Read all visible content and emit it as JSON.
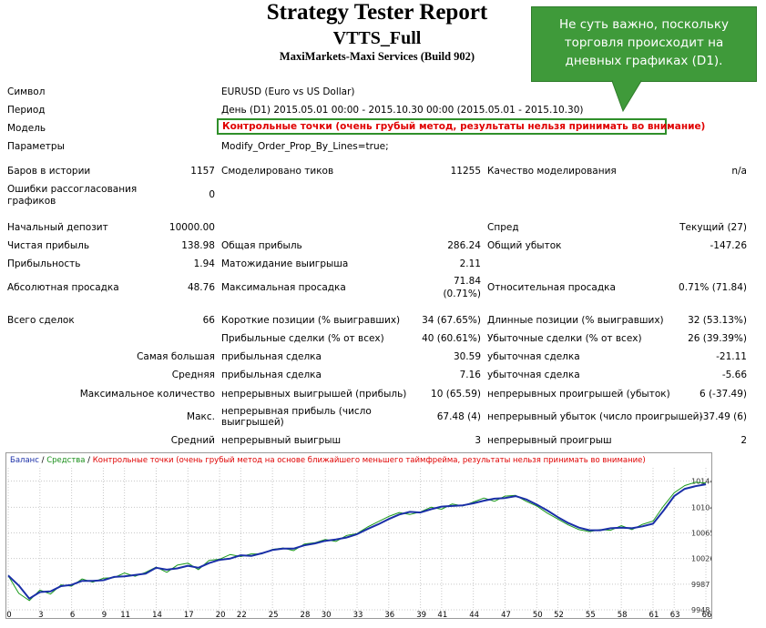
{
  "report": {
    "title": "Strategy Tester Report",
    "ea_name": "VTTS_Full",
    "server": "MaxiMarkets-Maxi Services (Build 902)"
  },
  "callout": {
    "line1": "Не суть важно, поскольку",
    "line2": "торговля происходит на",
    "line3": "дневных графиках (D1)."
  },
  "info": {
    "symbol_label": "Символ",
    "symbol_value": "EURUSD (Euro vs US Dollar)",
    "period_label": "Период",
    "period_value": "День (D1) 2015.05.01 00:00 - 2015.10.30 00:00 (2015.05.01 - 2015.10.30)",
    "model_label": "Модель",
    "model_value": "Контрольные точки (очень грубый метод, результаты нельзя принимать во внимание)",
    "params_label": "Параметры",
    "params_value": "Modify_Order_Prop_By_Lines=true;"
  },
  "stats": {
    "bars_label": "Баров в истории",
    "bars_value": "1157",
    "ticks_label": "Смоделировано тиков",
    "ticks_value": "11255",
    "quality_label": "Качество моделирования",
    "quality_value": "n/a",
    "errors_label1": "Ошибки рассогласования",
    "errors_label2": "графиков",
    "errors_value": "0",
    "deposit_label": "Начальный депозит",
    "deposit_value": "10000.00",
    "spread_label": "Спред",
    "spread_value": "Текущий (27)",
    "net_label": "Чистая прибыль",
    "net_value": "138.98",
    "gross_profit_label": "Общая прибыль",
    "gross_profit_value": "286.24",
    "gross_loss_label": "Общий убыток",
    "gross_loss_value": "-147.26",
    "pf_label": "Прибыльность",
    "pf_value": "1.94",
    "payoff_label": "Матожидание выигрыша",
    "payoff_value": "2.11",
    "abs_dd_label": "Абсолютная просадка",
    "abs_dd_value": "48.76",
    "max_dd_label": "Максимальная просадка",
    "max_dd_value1": "71.84",
    "max_dd_value2": "(0.71%)",
    "rel_dd_label": "Относительная просадка",
    "rel_dd_value": "0.71% (71.84)"
  },
  "trades": {
    "total_label": "Всего сделок",
    "total_value": "66",
    "short_label": "Короткие позиции (% выигравших)",
    "short_value": "34 (67.65%)",
    "long_label": "Длинные позиции (% выигравших)",
    "long_value": "32 (53.13%)",
    "profit_trades_label": "Прибыльные сделки (% от всех)",
    "profit_trades_value": "40 (60.61%)",
    "loss_trades_label": "Убыточные сделки (% от всех)",
    "loss_trades_value": "26 (39.39%)",
    "largest_label": "Самая большая",
    "largest_profit_label": "прибыльная сделка",
    "largest_profit_value": "30.59",
    "largest_loss_label": "убыточная сделка",
    "largest_loss_value": "-21.11",
    "average_label": "Средняя",
    "average_profit_label": "прибыльная сделка",
    "average_profit_value": "7.16",
    "average_loss_label": "убыточная сделка",
    "average_loss_value": "-5.66",
    "max_count_label": "Максимальное количество",
    "max_wins_label": "непрерывных выигрышей (прибыль)",
    "max_wins_value": "10 (65.59)",
    "max_losses_label": "непрерывных проигрышей (убыток)",
    "max_losses_value": "6 (-37.49)",
    "max_label": "Макс.",
    "max_profit_label1": "непрерывная прибыль (число",
    "max_profit_label2": "выигрышей)",
    "max_profit_value": "67.48 (4)",
    "max_loss_label": "непрерывный убыток (число проигрышей)",
    "max_loss_value": "-37.49 (6)",
    "avg_label": "Средний",
    "avg_wins_label": "непрерывный выигрыш",
    "avg_wins_value": "3",
    "avg_losses_label": "непрерывный проигрыш",
    "avg_losses_value": "2"
  },
  "chart_data": {
    "type": "line",
    "legend": {
      "balance": "Баланс",
      "sep1": " / ",
      "equity": "Средства",
      "sep2": " / ",
      "model": "Контрольные точки (очень грубый метод на основе ближайшего меньшего таймфрейма, результаты нельзя принимать во внимание)"
    },
    "x_ticks": [
      "0",
      "3",
      "6",
      "9",
      "11",
      "14",
      "17",
      "20",
      "22",
      "25",
      "28",
      "30",
      "33",
      "36",
      "39",
      "41",
      "44",
      "47",
      "50",
      "52",
      "55",
      "58",
      "61",
      "63",
      "66"
    ],
    "y_ticks": [
      "10144",
      "10104",
      "10065",
      "10026",
      "9987",
      "9948"
    ],
    "ylim": [
      9948,
      10164
    ],
    "colors": {
      "balance": "#1a2fa8",
      "equity": "#1a9a1a",
      "model": "#e00000"
    },
    "series": [
      {
        "name": "Баланс",
        "values": [
          10000,
          9985,
          9965,
          9975,
          9976,
          9984,
          9986,
          9992,
          9992,
          9993,
          9998,
          9999,
          10001,
          10003,
          10012,
          10009,
          10011,
          10015,
          10012,
          10019,
          10024,
          10026,
          10031,
          10030,
          10034,
          10039,
          10041,
          10041,
          10046,
          10049,
          10053,
          10055,
          10058,
          10063,
          10071,
          10078,
          10086,
          10093,
          10097,
          10096,
          10101,
          10105,
          10106,
          10107,
          10110,
          10114,
          10117,
          10118,
          10121,
          10116,
          10108,
          10099,
          10089,
          10080,
          10073,
          10069,
          10069,
          10072,
          10073,
          10072,
          10075,
          10079,
          10099,
          10121,
          10132,
          10136,
          10139
        ]
      },
      {
        "name": "Средства",
        "values": [
          10000,
          9973,
          9962,
          9978,
          9972,
          9986,
          9984,
          9995,
          9990,
          9996,
          9997,
          10004,
          9999,
          10005,
          10013,
          10005,
          10016,
          10019,
          10009,
          10023,
          10025,
          10032,
          10029,
          10033,
          10033,
          10040,
          10042,
          10038,
          10048,
          10050,
          10055,
          10052,
          10061,
          10064,
          10074,
          10082,
          10090,
          10096,
          10093,
          10097,
          10104,
          10101,
          10109,
          10106,
          10112,
          10118,
          10113,
          10121,
          10122,
          10113,
          10106,
          10095,
          10086,
          10077,
          10070,
          10067,
          10070,
          10069,
          10076,
          10070,
          10078,
          10083,
          10106,
          10126,
          10137,
          10142,
          10141
        ]
      }
    ]
  }
}
